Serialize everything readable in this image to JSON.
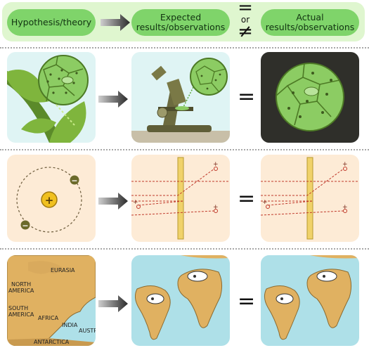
{
  "header": {
    "hypothesis_label": "Hypothesis/theory",
    "expected_label_line1": "Expected",
    "expected_label_line2": "results/observations",
    "actual_label_line1": "Actual",
    "actual_label_line2": "results/observations",
    "equals_symbol": "=",
    "or_label": "or",
    "not_equal_symbol": "≠"
  },
  "rows": [
    {
      "id": "cells",
      "equals_symbol": "="
    },
    {
      "id": "atom",
      "equals_symbol": "=",
      "charges": {
        "positive": "+",
        "negative": "−",
        "plus_marker": "+"
      }
    },
    {
      "id": "continents",
      "equals_symbol": "=",
      "map_labels": [
        "EURASIA",
        "NORTH",
        "AMERICA",
        "SOUTH",
        "AMERICA",
        "AFRICA",
        "INDIA",
        "AUSTR",
        "ANTARCTICA"
      ]
    }
  ],
  "colors": {
    "header_band": "#dff6cf",
    "pill": "#7fd46a",
    "plant_bg": "#dff4f4",
    "atom_bg": "#fdebd6",
    "ocean": "#aee0e8",
    "land": "#e0b161",
    "dark_card": "#2f2f2a",
    "cell_green": "#8ccc63"
  }
}
